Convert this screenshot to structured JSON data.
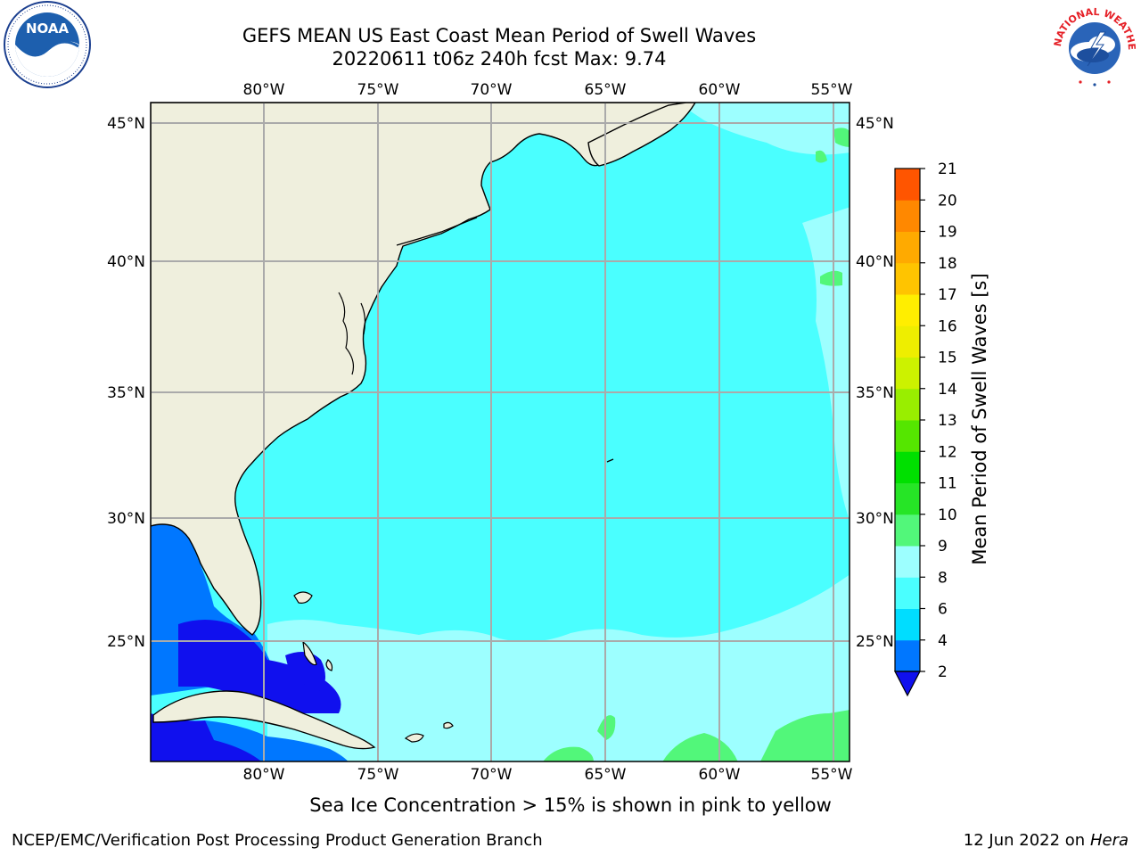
{
  "title": {
    "line1": "GEFS MEAN US East Coast Mean Period of Swell Waves",
    "line2": "20220611 t06z 240h fcst   Max: 9.74"
  },
  "map": {
    "lon_labels": [
      "80°W",
      "75°W",
      "70°W",
      "65°W",
      "60°W",
      "55°W"
    ],
    "lat_labels": [
      "45°N",
      "40°N",
      "35°N",
      "30°N",
      "25°N"
    ],
    "colors": {
      "land": "#efefdd",
      "ocean_main": "#4affff",
      "ocean_light": "#9dffff",
      "ocean_green": "#52f77a",
      "ocean_blue": "#0077ff",
      "ocean_deep": "#1010ee",
      "grid": "#aaaaaa",
      "coast": "#000000"
    }
  },
  "colorbar": {
    "label": "Mean Period of Swell Waves [s]",
    "ticks": [
      "2",
      "4",
      "6",
      "8",
      "9",
      "10",
      "11",
      "12",
      "13",
      "14",
      "15",
      "16",
      "17",
      "18",
      "19",
      "20",
      "21"
    ],
    "colors": [
      "#0077ff",
      "#00ddff",
      "#4affff",
      "#9dffff",
      "#52f77a",
      "#26e526",
      "#00e000",
      "#55e600",
      "#99ee00",
      "#ccf200",
      "#eeee00",
      "#ffee00",
      "#ffc400",
      "#ffaa00",
      "#ff8800",
      "#ff5500",
      "#ff2200",
      "#ff0000"
    ],
    "under_color": "#1010ee"
  },
  "footer": {
    "note": "Sea Ice Concentration > 15% is shown in pink to yellow",
    "credit_left": "NCEP/EMC/Verification Post Processing Product Generation Branch",
    "credit_right_date": "12 Jun 2022 on",
    "credit_right_host": "Hera"
  },
  "logos": {
    "noaa_text": "NOAA",
    "nws_text": "NATIONAL WEATHER SERVICE"
  }
}
